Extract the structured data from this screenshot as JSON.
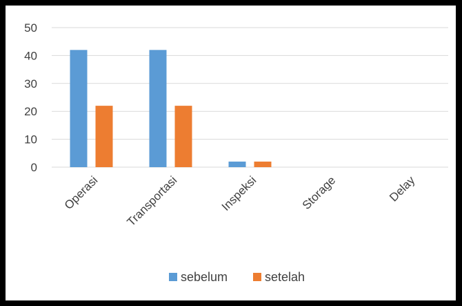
{
  "chart_data": {
    "type": "bar",
    "categories": [
      "Operasi",
      "Transportasi",
      "Inspeksi",
      "Storage",
      "Delay"
    ],
    "series": [
      {
        "name": "sebelum",
        "values": [
          42,
          42,
          2,
          0,
          0
        ],
        "color": "#5b9bd5"
      },
      {
        "name": "setelah",
        "values": [
          22,
          22,
          2,
          0,
          0
        ],
        "color": "#ed7d31"
      }
    ],
    "ylim": [
      0,
      50
    ],
    "yticks": [
      0,
      10,
      20,
      30,
      40,
      50
    ],
    "grid": true,
    "legend": "bottom",
    "title": "",
    "xlabel": "",
    "ylabel": ""
  }
}
